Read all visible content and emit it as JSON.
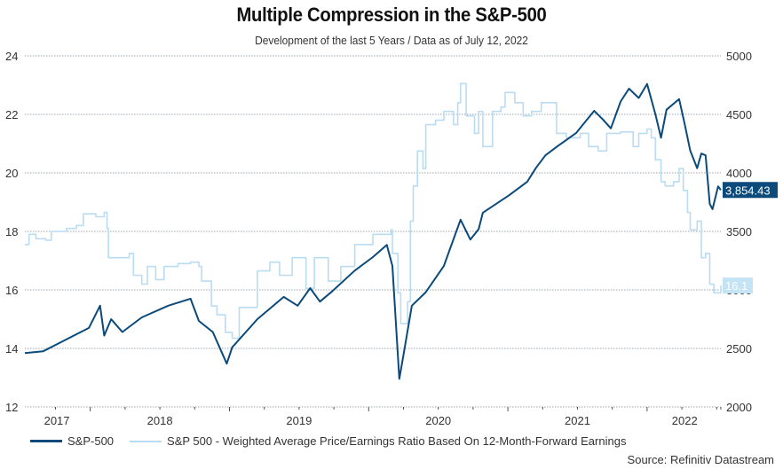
{
  "chart_data": {
    "type": "line",
    "title": "Multiple Compression in the S&P-500",
    "subtitle": "Development of the last 5 Years / Data as of July 12, 2022",
    "source": "Source: Refinitiv Datastream",
    "x_tick_labels": [
      "2017",
      "2018",
      "2019",
      "2020",
      "2021",
      "2022"
    ],
    "x_range": [
      2017.53,
      2022.53
    ],
    "left_axis": {
      "ticks": [
        "12",
        "14",
        "16",
        "18",
        "20",
        "22",
        "24"
      ],
      "range": [
        12,
        24
      ]
    },
    "right_axis": {
      "ticks": [
        "2000",
        "2500",
        "3000",
        "3500",
        "4000",
        "4500",
        "5000"
      ],
      "range": [
        2000,
        5000
      ]
    },
    "grid": true,
    "legend_position": "bottom-left",
    "series": [
      {
        "name": "S&P-500",
        "axis": "right",
        "color": "#0b4a7a",
        "last_value_label": "3,854.43",
        "points": [
          [
            2017.53,
            2460
          ],
          [
            2017.66,
            2475
          ],
          [
            2017.8,
            2560
          ],
          [
            2017.99,
            2675
          ],
          [
            2018.07,
            2865
          ],
          [
            2018.1,
            2610
          ],
          [
            2018.15,
            2750
          ],
          [
            2018.23,
            2640
          ],
          [
            2018.37,
            2765
          ],
          [
            2018.56,
            2865
          ],
          [
            2018.72,
            2925
          ],
          [
            2018.78,
            2735
          ],
          [
            2018.88,
            2640
          ],
          [
            2018.98,
            2370
          ],
          [
            2019.02,
            2510
          ],
          [
            2019.2,
            2750
          ],
          [
            2019.39,
            2940
          ],
          [
            2019.49,
            2865
          ],
          [
            2019.58,
            3015
          ],
          [
            2019.65,
            2900
          ],
          [
            2019.74,
            2990
          ],
          [
            2019.9,
            3165
          ],
          [
            2020.03,
            3280
          ],
          [
            2020.13,
            3385
          ],
          [
            2020.17,
            3205
          ],
          [
            2020.22,
            2240
          ],
          [
            2020.25,
            2445
          ],
          [
            2020.31,
            2865
          ],
          [
            2020.41,
            2980
          ],
          [
            2020.54,
            3205
          ],
          [
            2020.66,
            3600
          ],
          [
            2020.73,
            3430
          ],
          [
            2020.79,
            3520
          ],
          [
            2020.82,
            3660
          ],
          [
            2021.01,
            3810
          ],
          [
            2021.14,
            3925
          ],
          [
            2021.2,
            4040
          ],
          [
            2021.27,
            4150
          ],
          [
            2021.36,
            4230
          ],
          [
            2021.49,
            4340
          ],
          [
            2021.62,
            4530
          ],
          [
            2021.68,
            4460
          ],
          [
            2021.74,
            4380
          ],
          [
            2021.81,
            4610
          ],
          [
            2021.87,
            4720
          ],
          [
            2021.94,
            4640
          ],
          [
            2022.0,
            4760
          ],
          [
            2022.06,
            4500
          ],
          [
            2022.1,
            4300
          ],
          [
            2022.14,
            4540
          ],
          [
            2022.23,
            4630
          ],
          [
            2022.27,
            4420
          ],
          [
            2022.31,
            4190
          ],
          [
            2022.36,
            4040
          ],
          [
            2022.39,
            4165
          ],
          [
            2022.42,
            4150
          ],
          [
            2022.45,
            3735
          ],
          [
            2022.47,
            3690
          ],
          [
            2022.51,
            3885
          ],
          [
            2022.53,
            3854
          ]
        ]
      },
      {
        "name": "S&P 500 - Weighted Average Price/Earnings Ratio Based On 12-Month-Forward Earnings",
        "axis": "left",
        "color": "#b9dcf2",
        "last_value_label": "16.1",
        "points": [
          [
            2017.53,
            17.55
          ],
          [
            2017.56,
            17.9
          ],
          [
            2017.61,
            17.75
          ],
          [
            2017.68,
            17.7
          ],
          [
            2017.72,
            18.0
          ],
          [
            2017.83,
            18.1
          ],
          [
            2017.9,
            18.2
          ],
          [
            2017.95,
            18.6
          ],
          [
            2018.04,
            18.5
          ],
          [
            2018.1,
            18.65
          ],
          [
            2018.12,
            18.1
          ],
          [
            2018.13,
            17.1
          ],
          [
            2018.25,
            17.1
          ],
          [
            2018.28,
            17.25
          ],
          [
            2018.31,
            16.5
          ],
          [
            2018.37,
            16.2
          ],
          [
            2018.41,
            16.8
          ],
          [
            2018.47,
            16.35
          ],
          [
            2018.53,
            16.8
          ],
          [
            2018.63,
            16.9
          ],
          [
            2018.72,
            16.95
          ],
          [
            2018.78,
            16.8
          ],
          [
            2018.8,
            16.3
          ],
          [
            2018.87,
            15.45
          ],
          [
            2018.91,
            15.15
          ],
          [
            2018.97,
            14.55
          ],
          [
            2019.02,
            14.35
          ],
          [
            2019.07,
            15.4
          ],
          [
            2019.2,
            16.65
          ],
          [
            2019.29,
            16.95
          ],
          [
            2019.36,
            16.5
          ],
          [
            2019.45,
            17.1
          ],
          [
            2019.55,
            16.05
          ],
          [
            2019.61,
            17.1
          ],
          [
            2019.71,
            16.3
          ],
          [
            2019.8,
            16.8
          ],
          [
            2019.9,
            17.55
          ],
          [
            2020.03,
            17.9
          ],
          [
            2020.16,
            18.05
          ],
          [
            2020.17,
            17.25
          ],
          [
            2020.21,
            15.9
          ],
          [
            2020.23,
            14.85
          ],
          [
            2020.28,
            15.6
          ],
          [
            2020.3,
            18.35
          ],
          [
            2020.32,
            19.55
          ],
          [
            2020.35,
            20.75
          ],
          [
            2020.39,
            20.15
          ],
          [
            2020.41,
            21.65
          ],
          [
            2020.48,
            21.8
          ],
          [
            2020.54,
            22.1
          ],
          [
            2020.61,
            21.65
          ],
          [
            2020.64,
            22.4
          ],
          [
            2020.66,
            23.05
          ],
          [
            2020.7,
            21.95
          ],
          [
            2020.76,
            21.35
          ],
          [
            2020.79,
            22.1
          ],
          [
            2020.82,
            20.9
          ],
          [
            2020.89,
            22.1
          ],
          [
            2020.95,
            22.25
          ],
          [
            2020.98,
            22.75
          ],
          [
            2021.05,
            22.4
          ],
          [
            2021.11,
            21.95
          ],
          [
            2021.17,
            22.1
          ],
          [
            2021.24,
            22.4
          ],
          [
            2021.3,
            22.4
          ],
          [
            2021.35,
            21.35
          ],
          [
            2021.42,
            21.2
          ],
          [
            2021.52,
            21.35
          ],
          [
            2021.58,
            20.9
          ],
          [
            2021.65,
            20.75
          ],
          [
            2021.71,
            21.35
          ],
          [
            2021.81,
            21.4
          ],
          [
            2021.87,
            21.4
          ],
          [
            2021.9,
            20.9
          ],
          [
            2021.94,
            21.35
          ],
          [
            2022.0,
            21.5
          ],
          [
            2022.03,
            21.2
          ],
          [
            2022.06,
            20.45
          ],
          [
            2022.1,
            19.7
          ],
          [
            2022.13,
            19.55
          ],
          [
            2022.19,
            19.7
          ],
          [
            2022.23,
            20.15
          ],
          [
            2022.26,
            19.4
          ],
          [
            2022.29,
            18.65
          ],
          [
            2022.31,
            18.05
          ],
          [
            2022.36,
            18.35
          ],
          [
            2022.39,
            17.1
          ],
          [
            2022.42,
            17.25
          ],
          [
            2022.45,
            16.2
          ],
          [
            2022.48,
            15.9
          ],
          [
            2022.53,
            16.15
          ]
        ]
      }
    ]
  }
}
